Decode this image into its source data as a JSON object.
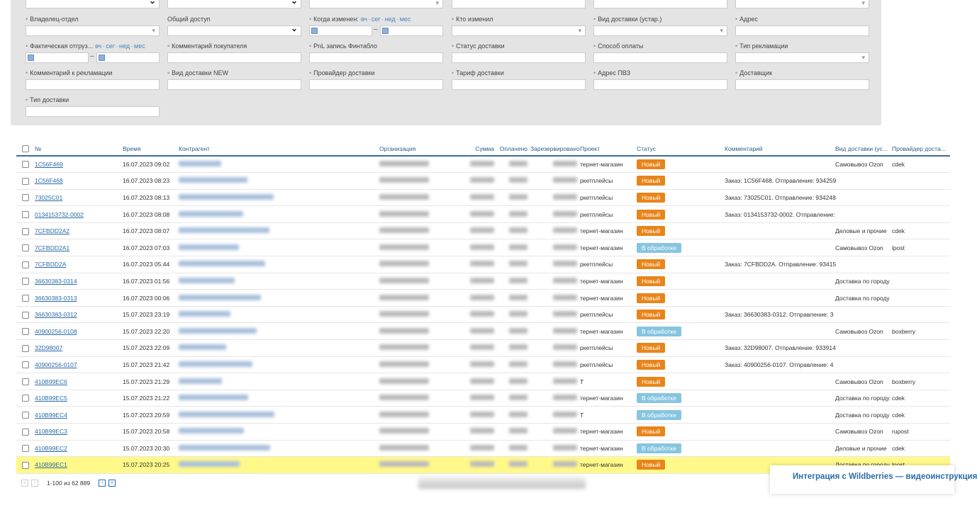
{
  "filters": {
    "quick_ranges": "вч · сег · нед · мес",
    "labels": [
      "Владелец-отдел",
      "Общий доступ",
      "Когда изменен:",
      "Кто изменил",
      "Вид доставки (устар.)",
      "Адрес",
      "Фактическая отгруз...",
      "Комментарий покупателя",
      "PnL запись Финтабло",
      "Статус доставки",
      "Способ оплаты",
      "Тип рекламации",
      "Комментарий к рекламации",
      "Вид доставки NEW",
      "Провайдер доставки",
      "Тариф доставки",
      "Адрес ПВЗ",
      "Доставщик",
      "Тип доставки"
    ]
  },
  "table": {
    "headers": [
      "№",
      "Время",
      "Контрагент",
      "Организация",
      "Сумма",
      "Оплачено",
      "Зарезервировано",
      "Проект",
      "Статус",
      "Комментарий",
      "Вид доставки (ус...",
      "Провайдер доста..."
    ],
    "status_colors": {
      "Новый": "#e8851a",
      "В обработке": "#86c5e0"
    },
    "rows": [
      {
        "no": "1C56F469",
        "time": "16.07.2023 09:02",
        "project": "тернет-магазин",
        "status": "Новый",
        "comment": "",
        "delivery": "Самовывоз Ozon",
        "provider": "cdek"
      },
      {
        "no": "1C56F468",
        "time": "16.07.2023 08:23",
        "project": "ркетплейсы",
        "status": "Новый",
        "comment": "Заказ: 1C56F468. Отправление: 934259",
        "delivery": "",
        "provider": ""
      },
      {
        "no": "73025C01",
        "time": "16.07.2023 08:13",
        "project": "ркетплейсы",
        "status": "Новый",
        "comment": "Заказ: 73025C01. Отправление: 934248",
        "delivery": "",
        "provider": ""
      },
      {
        "no": "0134153732-0002",
        "time": "16.07.2023 08:08",
        "project": "ркетплейсы",
        "status": "Новый",
        "comment": "Заказ: 0134153732-0002. Отправление:",
        "delivery": "",
        "provider": ""
      },
      {
        "no": "7CFBDD2A2",
        "time": "16.07.2023 08:07",
        "project": "тернет-магазин",
        "status": "Новый",
        "comment": "",
        "delivery": "Деловые и прочие",
        "provider": "cdek"
      },
      {
        "no": "7CFBDD2A1",
        "time": "16.07.2023 07:03",
        "project": "тернет-магазин",
        "status": "В обработке",
        "comment": "",
        "delivery": "Самовывоз Ozon",
        "provider": "lpost"
      },
      {
        "no": "7CFBDD2A",
        "time": "16.07.2023 05:44",
        "project": "ркетплейсы",
        "status": "Новый",
        "comment": "Заказ: 7CFBDD2A. Отправление: 93415",
        "delivery": "",
        "provider": ""
      },
      {
        "no": "36630383-0314",
        "time": "16.07.2023 01:56",
        "project": "тернет-магазин",
        "status": "Новый",
        "comment": "",
        "delivery": "Доставка по городу",
        "provider": ""
      },
      {
        "no": "36630383-0313",
        "time": "16.07.2023 00:06",
        "project": "тернет-магазин",
        "status": "Новый",
        "comment": "",
        "delivery": "Доставка по городу",
        "provider": ""
      },
      {
        "no": "36630383-0312",
        "time": "15.07.2023 23:19",
        "project": "ркетплейсы",
        "status": "Новый",
        "comment": "Заказ: 36630383-0312. Отправление: 3",
        "delivery": "",
        "provider": ""
      },
      {
        "no": "40900256-0108",
        "time": "15.07.2023 22:20",
        "project": "тернет-магазин",
        "status": "В обработке",
        "comment": "",
        "delivery": "Самовывоз Ozon",
        "provider": "boxberry"
      },
      {
        "no": "32D98007",
        "time": "15.07.2023 22:09",
        "project": "ркетплейсы",
        "status": "Новый",
        "comment": "Заказ: 32D98007. Отправление: 933914",
        "delivery": "",
        "provider": ""
      },
      {
        "no": "40900256-0107",
        "time": "15.07.2023 21:42",
        "project": "ркетплейсы",
        "status": "Новый",
        "comment": "Заказ: 40900256-0107. Отправление: 4",
        "delivery": "",
        "provider": ""
      },
      {
        "no": "410B99EC6",
        "time": "15.07.2023 21:29",
        "project": "Т",
        "status": "Новый",
        "comment": "",
        "delivery": "Самовывоз Ozon",
        "provider": "boxberry"
      },
      {
        "no": "410B99EC5",
        "time": "15.07.2023 21:22",
        "project": "тернет-магазин",
        "status": "В обработке",
        "comment": "",
        "delivery": "Доставка по городу",
        "provider": "cdek"
      },
      {
        "no": "410B99EC4",
        "time": "15.07.2023 20:59",
        "project": "Т",
        "status": "В обработке",
        "comment": "",
        "delivery": "Доставка по городу",
        "provider": "cdek"
      },
      {
        "no": "410B99EC3",
        "time": "15.07.2023 20:58",
        "project": "тернет-магазин",
        "status": "Новый",
        "comment": "",
        "delivery": "Самовывоз Ozon",
        "provider": "rupost"
      },
      {
        "no": "410B99EC2",
        "time": "15.07.2023 20:30",
        "project": "тернет-магазин",
        "status": "В обработке",
        "comment": "",
        "delivery": "Деловые и прочие",
        "provider": "cdek"
      },
      {
        "no": "410B99EC1",
        "time": "15.07.2023 20:25",
        "project": "тернет-магазин",
        "status": "Новый",
        "comment": "",
        "delivery": "Доставка по городу",
        "provider": "lpost",
        "highlighted": true
      }
    ]
  },
  "pager": {
    "range": "1-100 из 62 889"
  },
  "popup": {
    "text": "Интеграция с Wildberries — видеоинструкция"
  },
  "colors": {
    "highlight": "#fff98a",
    "link": "#2a6ca8",
    "header_line": "#3c6e9a"
  }
}
